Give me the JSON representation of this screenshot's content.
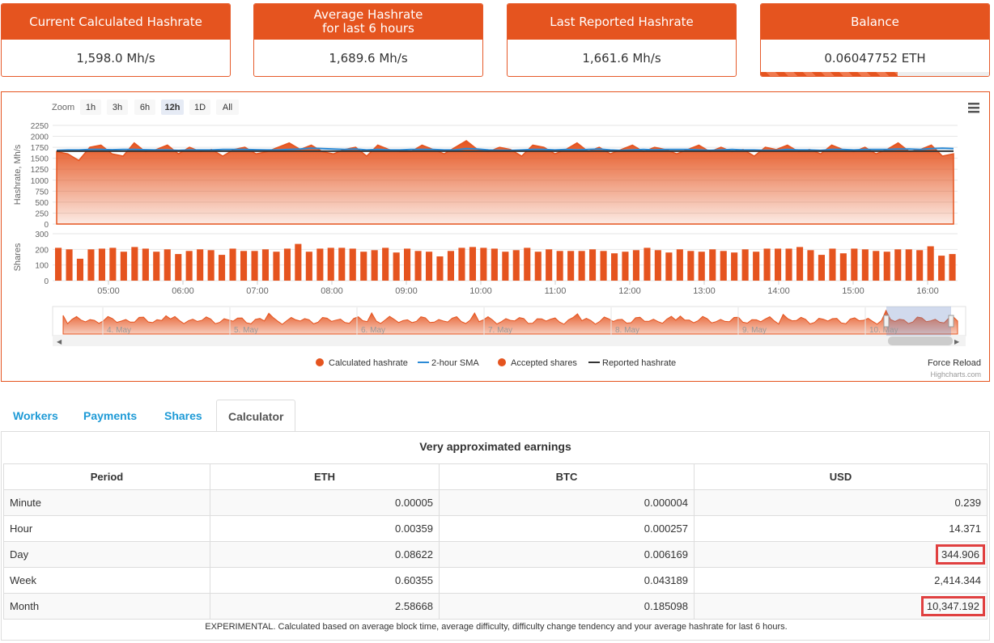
{
  "cards": [
    {
      "title_lines": [
        "Current Calculated Hashrate"
      ],
      "value": "1,598.0 Mh/s"
    },
    {
      "title_lines": [
        "Average Hashrate",
        "for last 6 hours"
      ],
      "value": "1,689.6 Mh/s"
    },
    {
      "title_lines": [
        "Last Reported Hashrate"
      ],
      "value": "1,661.6 Mh/s"
    },
    {
      "title_lines": [
        "Balance"
      ],
      "value": "0.06047752 ETH",
      "progress": 0.6
    }
  ],
  "chart": {
    "zoom_label": "Zoom",
    "zoom_buttons": [
      "1h",
      "3h",
      "6h",
      "12h",
      "1D",
      "All"
    ],
    "zoom_selected": "12h",
    "menu_icon": "hamburger-menu-icon",
    "force_reload": "Force Reload",
    "credit": "Highcharts.com",
    "colors": {
      "hashrate": "#e5541f",
      "sma": "#2b8ad6",
      "reported": "#333333",
      "shares": "#e5541f"
    }
  },
  "chart_data": {
    "type": "area",
    "x_ticks": [
      "05:00",
      "06:00",
      "07:00",
      "08:00",
      "09:00",
      "10:00",
      "11:00",
      "12:00",
      "13:00",
      "14:00",
      "15:00",
      "16:00"
    ],
    "hashrate_axis": {
      "label": "Hashrate, Mh/s",
      "ticks": [
        0,
        250,
        500,
        750,
        1000,
        1250,
        1500,
        1750,
        2000,
        2250
      ],
      "ylim": [
        0,
        2250
      ]
    },
    "shares_axis": {
      "label": "Shares",
      "ticks": [
        0,
        100,
        200,
        300
      ],
      "ylim": [
        0,
        300
      ]
    },
    "legend": [
      "Calculated hashrate",
      "2-hour SMA",
      "Accepted shares",
      "Reported hashrate"
    ],
    "navigator_labels": [
      "4. May",
      "5. May",
      "6. May",
      "7. May",
      "8. May",
      "9. May",
      "10. May"
    ],
    "shares": [
      210,
      200,
      140,
      200,
      205,
      210,
      185,
      215,
      205,
      185,
      200,
      170,
      190,
      200,
      195,
      165,
      205,
      190,
      190,
      200,
      185,
      205,
      235,
      185,
      205,
      210,
      210,
      205,
      185,
      195,
      210,
      180,
      205,
      190,
      185,
      155,
      190,
      210,
      215,
      210,
      205,
      185,
      195,
      210,
      185,
      200,
      190,
      190,
      190,
      200,
      190,
      175,
      185,
      195,
      210,
      195,
      180,
      200,
      190,
      185,
      200,
      190,
      180,
      200,
      185,
      205,
      205,
      205,
      215,
      195,
      165,
      205,
      175,
      205,
      200,
      190,
      185,
      200,
      200,
      195,
      220,
      160,
      170
    ],
    "hashrate": [
      1650,
      1600,
      1450,
      1750,
      1800,
      1600,
      1550,
      1850,
      1650,
      1700,
      1800,
      1600,
      1750,
      1650,
      1700,
      1550,
      1700,
      1750,
      1600,
      1650,
      1750,
      1850,
      1700,
      1800,
      1650,
      1600,
      1700,
      1750,
      1550,
      1800,
      1700,
      1650,
      1650,
      1800,
      1700,
      1600,
      1750,
      1900,
      1700,
      1650,
      1750,
      1700,
      1550,
      1800,
      1750,
      1600,
      1700,
      1850,
      1650,
      1750,
      1600,
      1700,
      1800,
      1650,
      1750,
      1700,
      1600,
      1700,
      1800,
      1650,
      1750,
      1650,
      1700,
      1550,
      1750,
      1700,
      1800,
      1650,
      1700,
      1600,
      1800,
      1700,
      1650,
      1750,
      1600,
      1700,
      1850,
      1650,
      1700,
      1800,
      1550,
      1600
    ],
    "sma": [
      1680,
      1690,
      1690,
      1700,
      1700,
      1695,
      1700,
      1700,
      1695,
      1690,
      1690,
      1680,
      1690,
      1690,
      1690,
      1700,
      1700,
      1700,
      1695,
      1690,
      1690,
      1700,
      1710,
      1730,
      1720,
      1710,
      1700,
      1710,
      1690,
      1700,
      1690,
      1690,
      1700,
      1700,
      1700,
      1690,
      1690,
      1720,
      1710,
      1690,
      1680,
      1680,
      1690,
      1700,
      1700,
      1690,
      1700,
      1690,
      1700,
      1710,
      1690,
      1680,
      1690,
      1700,
      1690,
      1700,
      1700,
      1700,
      1690,
      1680,
      1690,
      1700,
      1690,
      1690,
      1680,
      1680,
      1700,
      1690,
      1690,
      1680,
      1700,
      1700,
      1690,
      1700,
      1700,
      1700,
      1710,
      1710,
      1700,
      1720,
      1730,
      1720
    ],
    "reported": 1661.6
  },
  "tabs": [
    {
      "label": "Workers"
    },
    {
      "label": "Payments"
    },
    {
      "label": "Shares"
    },
    {
      "label": "Calculator"
    }
  ],
  "calculator": {
    "title": "Very approximated earnings",
    "headers": [
      "Period",
      "ETH",
      "BTC",
      "USD"
    ],
    "rows": [
      {
        "period": "Minute",
        "eth": "0.00005",
        "btc": "0.000004",
        "usd": "0.239",
        "highlight": false
      },
      {
        "period": "Hour",
        "eth": "0.00359",
        "btc": "0.000257",
        "usd": "14.371",
        "highlight": false
      },
      {
        "period": "Day",
        "eth": "0.08622",
        "btc": "0.006169",
        "usd": "344.906",
        "highlight": true
      },
      {
        "period": "Week",
        "eth": "0.60355",
        "btc": "0.043189",
        "usd": "2,414.344",
        "highlight": false
      },
      {
        "period": "Month",
        "eth": "2.58668",
        "btc": "0.185098",
        "usd": "10,347.192",
        "highlight": true
      }
    ],
    "footnote": "EXPERIMENTAL. Calculated based on average block time, average difficulty, difficulty change tendency and your average hashrate for last 6 hours."
  }
}
